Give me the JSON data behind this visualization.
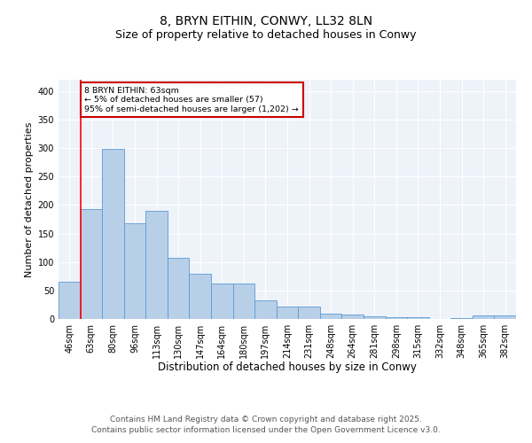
{
  "title": "8, BRYN EITHIN, CONWY, LL32 8LN",
  "subtitle": "Size of property relative to detached houses in Conwy",
  "xlabel": "Distribution of detached houses by size in Conwy",
  "ylabel": "Number of detached properties",
  "categories": [
    "46sqm",
    "63sqm",
    "80sqm",
    "96sqm",
    "113sqm",
    "130sqm",
    "147sqm",
    "164sqm",
    "180sqm",
    "197sqm",
    "214sqm",
    "231sqm",
    "248sqm",
    "264sqm",
    "281sqm",
    "298sqm",
    "315sqm",
    "332sqm",
    "348sqm",
    "365sqm",
    "382sqm"
  ],
  "values": [
    65,
    193,
    298,
    168,
    190,
    108,
    80,
    63,
    63,
    32,
    22,
    22,
    10,
    8,
    4,
    3,
    3,
    0,
    2,
    7,
    7
  ],
  "bar_color": "#b8cfe8",
  "bar_edge_color": "#5b9bd5",
  "red_line_index": 1,
  "annotation_text": "8 BRYN EITHIN: 63sqm\n← 5% of detached houses are smaller (57)\n95% of semi-detached houses are larger (1,202) →",
  "annotation_box_color": "#ffffff",
  "annotation_box_edge": "#cc0000",
  "ylim": [
    0,
    420
  ],
  "yticks": [
    0,
    50,
    100,
    150,
    200,
    250,
    300,
    350,
    400
  ],
  "background_color": "#eef2f9",
  "footer": "Contains HM Land Registry data © Crown copyright and database right 2025.\nContains public sector information licensed under the Open Government Licence v3.0.",
  "title_fontsize": 10,
  "subtitle_fontsize": 9,
  "xlabel_fontsize": 8.5,
  "ylabel_fontsize": 8,
  "tick_fontsize": 7,
  "footer_fontsize": 6.5
}
